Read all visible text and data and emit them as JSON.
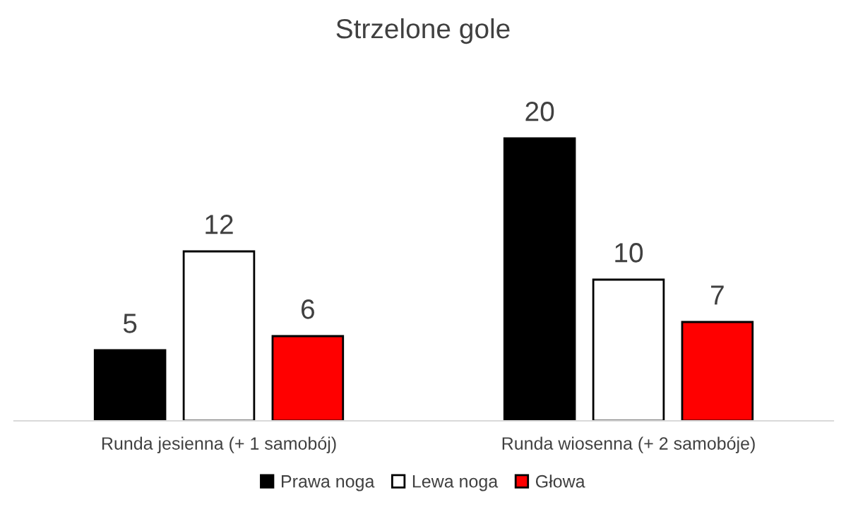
{
  "chart_data": {
    "type": "bar",
    "title": "Strzelone gole",
    "categories": [
      "Runda jesienna (+ 1 samobój)",
      "Runda wiosenna (+ 2 samobóje)"
    ],
    "series": [
      {
        "name": "Prawa noga",
        "color": "#000000",
        "values": [
          5,
          20
        ]
      },
      {
        "name": "Lewa noga",
        "color": "#ffffff",
        "values": [
          12,
          10
        ]
      },
      {
        "name": "Głowa",
        "color": "#ff0000",
        "values": [
          6,
          7
        ]
      }
    ],
    "data_labels": true,
    "legend": "bottom",
    "grid": false
  }
}
